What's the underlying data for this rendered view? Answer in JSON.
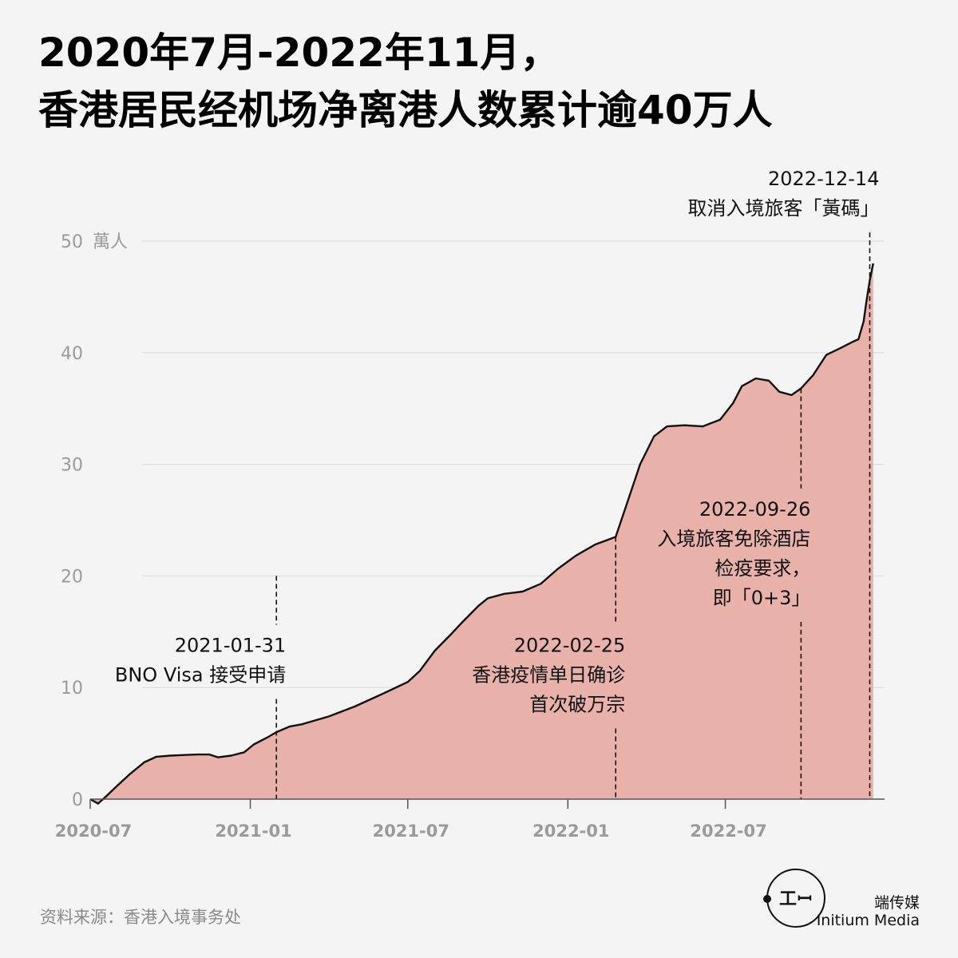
{
  "title": {
    "line1": "2020年7月-2022年11月，",
    "line2": "香港居民经机场净离港人数累计逾40万人"
  },
  "colors": {
    "background": "#f4f4f4",
    "area_fill": "#e8b2aa",
    "line": "#111111",
    "grid": "#d9d9d9",
    "axis_text": "#9a9a9a"
  },
  "source": "资料来源：香港入境事务处",
  "brand": {
    "logo_icon": "initium-logo-icon",
    "logo_glyph": "工ꟷ",
    "name_cn": "端传媒",
    "name_en": "Initium Media"
  },
  "chart_data": {
    "type": "area",
    "y_unit": "萬人",
    "ylim": [
      0,
      50
    ],
    "yticks": [
      "0",
      "10",
      "20",
      "30",
      "40",
      "50"
    ],
    "xlim": [
      "2020-07-01",
      "2022-12-31"
    ],
    "xticks": [
      {
        "date": "2020-07-01",
        "label": "2020-07"
      },
      {
        "date": "2021-01-01",
        "label": "2021-01"
      },
      {
        "date": "2021-07-01",
        "label": "2021-07"
      },
      {
        "date": "2022-01-01",
        "label": "2022-01"
      },
      {
        "date": "2022-07-01",
        "label": "2022-07"
      }
    ],
    "grid": true,
    "series": [
      {
        "points": [
          [
            "2020-07-01",
            0.0
          ],
          [
            "2020-07-10",
            -0.4
          ],
          [
            "2020-07-20",
            0.3
          ],
          [
            "2020-08-01",
            1.2
          ],
          [
            "2020-08-15",
            2.2
          ],
          [
            "2020-09-01",
            3.3
          ],
          [
            "2020-09-15",
            3.8
          ],
          [
            "2020-10-01",
            3.9
          ],
          [
            "2020-10-15",
            3.95
          ],
          [
            "2020-11-01",
            4.0
          ],
          [
            "2020-11-15",
            4.0
          ],
          [
            "2020-11-25",
            3.75
          ],
          [
            "2020-12-10",
            3.9
          ],
          [
            "2020-12-25",
            4.2
          ],
          [
            "2021-01-05",
            4.9
          ],
          [
            "2021-01-20",
            5.5
          ],
          [
            "2021-01-31",
            6.0
          ],
          [
            "2021-02-15",
            6.5
          ],
          [
            "2021-03-01",
            6.7
          ],
          [
            "2021-04-01",
            7.4
          ],
          [
            "2021-05-01",
            8.3
          ],
          [
            "2021-06-01",
            9.4
          ],
          [
            "2021-07-01",
            10.5
          ],
          [
            "2021-07-15",
            11.5
          ],
          [
            "2021-08-01",
            13.3
          ],
          [
            "2021-08-20",
            14.8
          ],
          [
            "2021-09-01",
            15.8
          ],
          [
            "2021-09-20",
            17.3
          ],
          [
            "2021-10-01",
            18.0
          ],
          [
            "2021-10-20",
            18.4
          ],
          [
            "2021-11-10",
            18.6
          ],
          [
            "2021-12-01",
            19.3
          ],
          [
            "2021-12-20",
            20.6
          ],
          [
            "2022-01-10",
            21.8
          ],
          [
            "2022-02-01",
            22.8
          ],
          [
            "2022-02-25",
            23.5
          ],
          [
            "2022-03-10",
            26.5
          ],
          [
            "2022-03-25",
            30.0
          ],
          [
            "2022-04-10",
            32.5
          ],
          [
            "2022-04-25",
            33.4
          ],
          [
            "2022-05-15",
            33.5
          ],
          [
            "2022-06-05",
            33.4
          ],
          [
            "2022-06-25",
            34.0
          ],
          [
            "2022-07-10",
            35.5
          ],
          [
            "2022-07-20",
            37.0
          ],
          [
            "2022-08-05",
            37.7
          ],
          [
            "2022-08-20",
            37.5
          ],
          [
            "2022-09-01",
            36.5
          ],
          [
            "2022-09-15",
            36.2
          ],
          [
            "2022-09-26",
            36.8
          ],
          [
            "2022-10-10",
            38.0
          ],
          [
            "2022-10-25",
            39.8
          ],
          [
            "2022-11-10",
            40.4
          ],
          [
            "2022-11-25",
            41.0
          ],
          [
            "2022-12-01",
            41.2
          ],
          [
            "2022-12-07",
            42.8
          ],
          [
            "2022-12-10",
            44.5
          ],
          [
            "2022-12-14",
            46.5
          ],
          [
            "2022-12-18",
            48.0
          ]
        ]
      }
    ],
    "annotations": [
      {
        "date": "2021-01-31",
        "line_from": 0,
        "line_to": 20,
        "label_lines": [
          "2021-01-31",
          "BNO Visa 接受申请"
        ],
        "label_y": 13.2,
        "label_side": "left"
      },
      {
        "date": "2022-02-25",
        "line_from": 0,
        "line_to": 23.5,
        "label_lines": [
          "2022-02-25",
          "香港疫情单日确诊",
          "首次破万宗"
        ],
        "label_y": 13.2,
        "label_side": "left"
      },
      {
        "date": "2022-09-26",
        "line_from": 0,
        "line_to": 36.8,
        "label_lines": [
          "2022-09-26",
          "入境旅客免除酒店",
          "检疫要求，",
          "即「0+3」"
        ],
        "label_y": 25.4,
        "label_side": "left"
      },
      {
        "date": "2022-12-14",
        "line_from": 0,
        "line_to": 48.5,
        "label_lines": [
          "2022-12-14",
          "取消入境旅客「黃碼」"
        ],
        "label_y": 55.0,
        "label_side": "left"
      }
    ]
  }
}
